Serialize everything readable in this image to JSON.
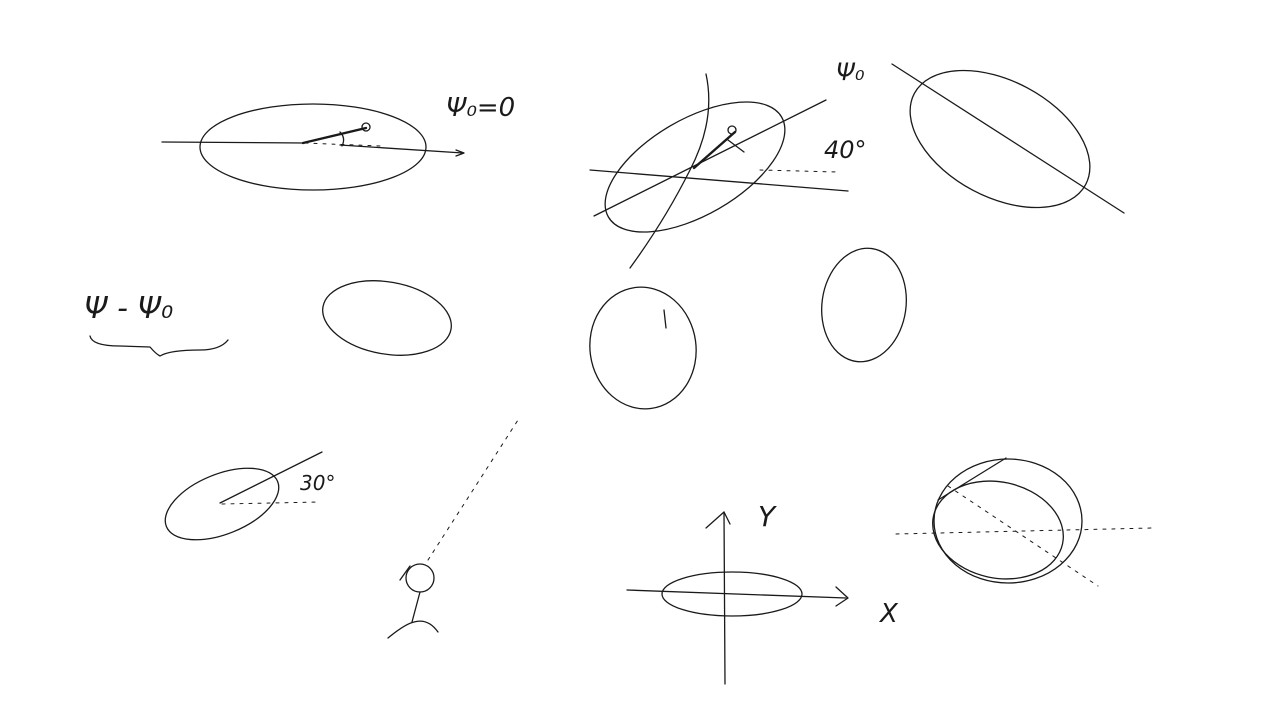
{
  "labels": {
    "psi0_eq_0": "Ψ₀=0",
    "psi0_top": "Ψ₀",
    "deg40_top": "40°",
    "psi_minus_psi0": "Ψ - Ψ₀",
    "deg30_bottom": "30°",
    "axis_y": "Y",
    "axis_x": "X"
  },
  "colors": {
    "ink": "#1a1a1a",
    "background": "#ffffff"
  }
}
